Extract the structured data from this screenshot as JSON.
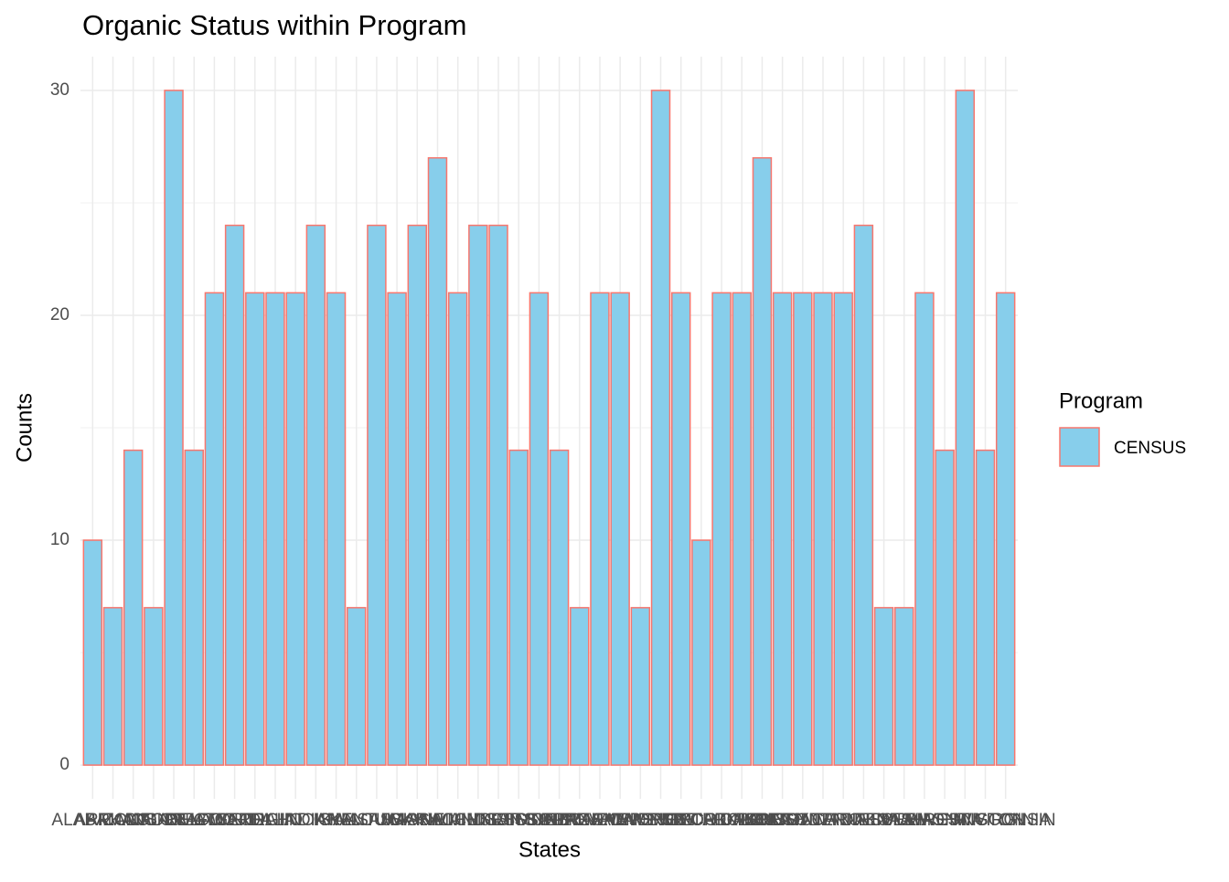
{
  "chart_data": {
    "type": "bar",
    "title": "Organic Status within Program",
    "x_label": "States",
    "y_label": "Counts",
    "legend_title": "Program",
    "legend_position": "right",
    "categories": [
      "ALABAMA",
      "ARIZONA",
      "ARKANSAS",
      "CALIFORNIA",
      "COLORADO",
      "CONNECTICUT",
      "DELAWARE",
      "FLORIDA",
      "GEORGIA",
      "IDAHO",
      "ILLINOIS",
      "INDIANA",
      "IOWA",
      "KANSAS",
      "KENTUCKY",
      "LOUISIANA",
      "MAINE",
      "MARYLAND",
      "MASSACHUSETTS",
      "MICHIGAN",
      "MINNESOTA",
      "MISSISSIPPI",
      "MISSOURI",
      "MONTANA",
      "NEBRASKA",
      "NEVADA",
      "NEW HAMPSHIRE",
      "NEW JERSEY",
      "NEW MEXICO",
      "NEW YORK",
      "NORTH CAROLINA",
      "NORTH DAKOTA",
      "OHIO",
      "OKLAHOMA",
      "OREGON",
      "PENNSYLVANIA",
      "SOUTH CAROLINA",
      "SOUTH DAKOTA",
      "TENNESSEE",
      "TEXAS",
      "UTAH",
      "VERMONT",
      "VIRGINIA",
      "WASHINGTON",
      "WEST VIRGINIA",
      "WISCONSIN"
    ],
    "series": [
      {
        "name": "CENSUS",
        "color": "#87ceeb",
        "edge_color": "#f8766d",
        "values": [
          10,
          7,
          14,
          7,
          30,
          14,
          21,
          24,
          21,
          21,
          21,
          24,
          21,
          7,
          24,
          21,
          24,
          27,
          21,
          24,
          24,
          14,
          21,
          14,
          7,
          21,
          21,
          7,
          30,
          21,
          10,
          21,
          21,
          27,
          21,
          21,
          21,
          21,
          24,
          7,
          7,
          21,
          14,
          30,
          14,
          21
        ]
      }
    ],
    "ylim": [
      -1.5,
      31.5
    ],
    "yticks": [
      0,
      10,
      20,
      30
    ],
    "grid": true
  }
}
